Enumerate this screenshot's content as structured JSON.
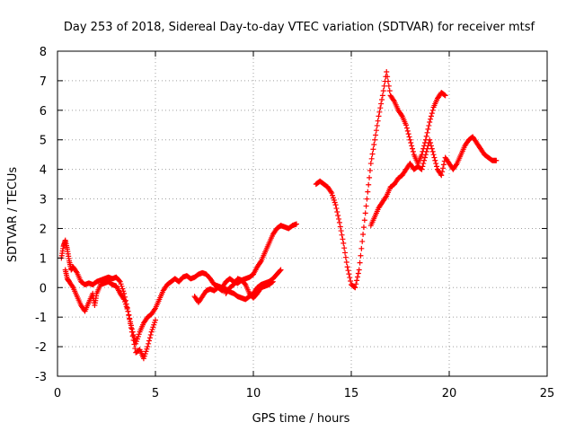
{
  "chart_data": {
    "type": "scatter",
    "title": "Day 253 of 2018, Sidereal Day-to-day VTEC variation (SDTVAR) for receiver mtsf",
    "xlabel": "GPS time / hours",
    "ylabel": "SDTVAR / TECUs",
    "xlim": [
      0,
      25
    ],
    "ylim": [
      -3,
      8
    ],
    "xticks": [
      0,
      5,
      10,
      15,
      20,
      25
    ],
    "yticks": [
      -3,
      -2,
      -1,
      0,
      1,
      2,
      3,
      4,
      5,
      6,
      7,
      8
    ],
    "grid": true,
    "marker": "+",
    "color": "#ff0000",
    "series": [
      {
        "x": [
          0.2,
          0.3,
          0.4,
          0.5,
          0.6,
          0.7,
          0.8,
          1.0,
          1.2,
          1.4,
          1.6,
          1.8,
          2.0,
          2.2,
          2.4,
          2.6,
          2.8,
          3.0,
          3.2,
          3.4,
          3.6,
          3.8,
          4.0,
          4.2,
          4.4,
          4.6,
          4.8,
          5.0,
          5.2,
          5.4,
          5.6,
          5.8,
          6.0,
          6.2,
          6.4,
          6.6,
          6.8,
          7.0,
          7.2,
          7.4,
          7.6,
          7.8,
          8.0,
          8.2,
          8.4,
          8.6,
          8.8,
          9.0,
          9.2,
          9.4,
          9.6,
          9.8,
          10.0,
          10.2,
          10.4,
          10.6,
          10.8,
          11.0,
          11.2,
          11.4,
          11.6,
          11.8,
          12.0,
          12.2
        ],
        "y": [
          1.0,
          1.4,
          1.6,
          1.3,
          0.9,
          0.6,
          0.7,
          0.5,
          0.2,
          0.1,
          0.15,
          0.1,
          0.2,
          0.25,
          0.3,
          0.35,
          0.3,
          0.35,
          0.2,
          -0.2,
          -0.8,
          -1.4,
          -1.9,
          -1.5,
          -1.2,
          -1.0,
          -0.9,
          -0.7,
          -0.4,
          -0.1,
          0.1,
          0.2,
          0.3,
          0.2,
          0.35,
          0.4,
          0.3,
          0.35,
          0.45,
          0.5,
          0.45,
          0.3,
          0.1,
          0.05,
          0.0,
          0.2,
          0.3,
          0.2,
          0.15,
          0.25,
          0.3,
          0.35,
          0.45,
          0.7,
          0.9,
          1.2,
          1.5,
          1.8,
          2.0,
          2.1,
          2.05,
          2.0,
          2.1,
          2.15
        ]
      },
      {
        "x": [
          0.4,
          0.5,
          0.6,
          0.8,
          1.0,
          1.2,
          1.4,
          1.6,
          1.8,
          1.9,
          2.0,
          2.2,
          2.4,
          2.6,
          2.8,
          3.0,
          3.2,
          3.4,
          3.6,
          3.8,
          4.0,
          4.2,
          4.4,
          4.6,
          4.8,
          5.0
        ],
        "y": [
          0.6,
          0.3,
          0.2,
          0.0,
          -0.3,
          -0.6,
          -0.8,
          -0.5,
          -0.2,
          -0.6,
          -0.2,
          0.1,
          0.15,
          0.2,
          0.1,
          0.05,
          -0.2,
          -0.4,
          -0.8,
          -1.5,
          -2.2,
          -2.1,
          -2.4,
          -2.0,
          -1.5,
          -1.1
        ]
      },
      {
        "x": [
          7.0,
          7.2,
          7.4,
          7.6,
          7.8,
          8.0,
          8.2,
          8.4,
          8.6,
          8.8,
          9.0,
          9.2,
          9.4,
          9.6,
          9.8,
          10.0,
          10.2,
          10.4,
          10.6,
          10.8,
          11.0,
          11.2,
          11.4
        ],
        "y": [
          -0.3,
          -0.5,
          -0.3,
          -0.1,
          -0.05,
          -0.1,
          0.0,
          -0.1,
          -0.05,
          -0.15,
          -0.2,
          -0.3,
          -0.35,
          -0.4,
          -0.3,
          -0.2,
          0.0,
          0.1,
          0.15,
          0.2,
          0.3,
          0.45,
          0.6
        ]
      },
      {
        "x": [
          8.6,
          8.8,
          9.0,
          9.2,
          9.4,
          9.6,
          9.8,
          10.0,
          10.2,
          10.4,
          10.6,
          10.8,
          11.0
        ],
        "y": [
          -0.2,
          0.0,
          0.1,
          0.3,
          0.25,
          0.1,
          -0.2,
          -0.35,
          -0.2,
          0.0,
          0.05,
          0.1,
          0.2
        ]
      },
      {
        "x": [
          13.2,
          13.4,
          13.6,
          13.8,
          14.0,
          14.2,
          14.4,
          14.6,
          14.8,
          15.0,
          15.2,
          15.4,
          15.6,
          15.8,
          16.0,
          16.2,
          16.4,
          16.6,
          16.8,
          17.0,
          17.2,
          17.4,
          17.6,
          17.8,
          18.0,
          18.2,
          18.4,
          18.6,
          18.8,
          19.0,
          19.2,
          19.4,
          19.6,
          19.8
        ],
        "y": [
          3.5,
          3.6,
          3.5,
          3.4,
          3.2,
          2.8,
          2.2,
          1.5,
          0.7,
          0.1,
          0.0,
          0.6,
          1.8,
          3.0,
          4.2,
          5.0,
          5.8,
          6.5,
          7.3,
          6.5,
          6.3,
          6.0,
          5.8,
          5.5,
          5.0,
          4.5,
          4.2,
          4.5,
          5.0,
          5.6,
          6.1,
          6.4,
          6.6,
          6.5
        ]
      },
      {
        "x": [
          16.0,
          16.2,
          16.4,
          16.6,
          16.8,
          17.0,
          17.2,
          17.4,
          17.6,
          17.8,
          18.0,
          18.2,
          18.4,
          18.6,
          18.8,
          19.0,
          19.2,
          19.4,
          19.6,
          19.8,
          20.0,
          20.2,
          20.4,
          20.6,
          20.8,
          21.0,
          21.2,
          21.4,
          21.6,
          21.8,
          22.0,
          22.2,
          22.4
        ],
        "y": [
          2.1,
          2.4,
          2.7,
          2.9,
          3.1,
          3.4,
          3.5,
          3.7,
          3.8,
          4.0,
          4.2,
          4.0,
          4.1,
          4.0,
          4.5,
          5.0,
          4.5,
          4.0,
          3.8,
          4.4,
          4.2,
          4.0,
          4.2,
          4.5,
          4.8,
          5.0,
          5.1,
          4.9,
          4.7,
          4.5,
          4.4,
          4.3,
          4.3
        ]
      }
    ]
  }
}
